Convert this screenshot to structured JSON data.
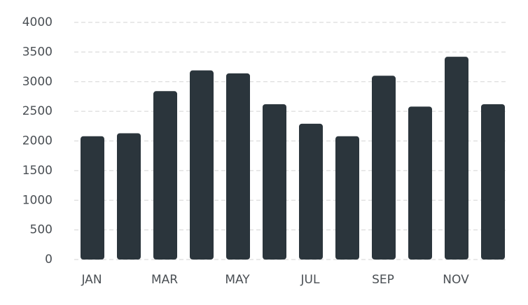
{
  "chart_data": {
    "type": "bar",
    "categories": [
      "JAN",
      null,
      "MAR",
      null,
      "MAY",
      null,
      "JUL",
      null,
      "SEP",
      null,
      "NOV",
      null
    ],
    "values": [
      2080,
      2130,
      2840,
      3190,
      3140,
      2620,
      2290,
      2080,
      3100,
      2580,
      3420,
      2620
    ],
    "color": "#2b353c",
    "ylim": [
      0,
      4000
    ],
    "yticks": [
      0,
      500,
      1000,
      1500,
      2000,
      2500,
      3000,
      3500,
      4000
    ],
    "grid": true
  }
}
